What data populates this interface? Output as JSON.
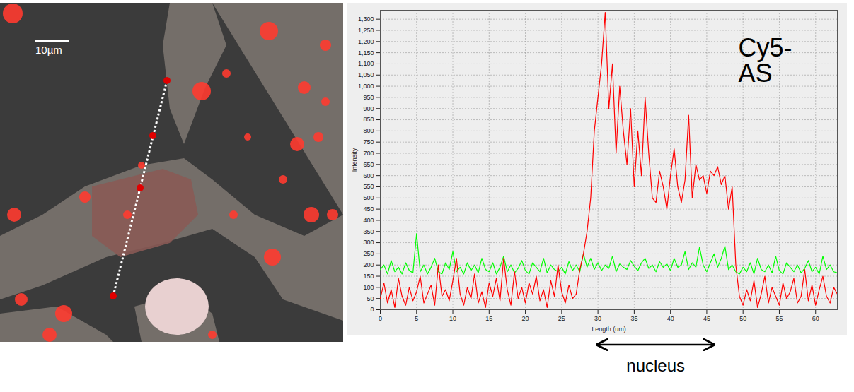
{
  "image": {
    "scale_bar": "10µm"
  },
  "chart_data": {
    "type": "line",
    "x_label": "Length (um)",
    "y_label": "Intensity",
    "xlim": [
      0,
      63
    ],
    "xticks": [
      0,
      5,
      10,
      15,
      20,
      25,
      30,
      35,
      40,
      45,
      50,
      55,
      60
    ],
    "ylim": [
      0,
      1340
    ],
    "yticks": [
      0,
      50,
      100,
      150,
      200,
      250,
      300,
      350,
      400,
      450,
      500,
      550,
      600,
      650,
      700,
      750,
      800,
      850,
      900,
      950,
      {
        "value": 1000,
        "label": "1,000"
      },
      {
        "value": 1050,
        "label": "1,050"
      },
      {
        "value": 1100,
        "label": "1,100"
      },
      {
        "value": 1150,
        "label": "1,150"
      },
      {
        "value": 1200,
        "label": "1,200"
      },
      {
        "value": 1250,
        "label": "1,250"
      },
      {
        "value": 1300,
        "label": "1,300"
      }
    ],
    "grid": true,
    "x": [
      0,
      0.5,
      1,
      1.5,
      2,
      2.5,
      3,
      3.5,
      4,
      4.5,
      5,
      5.5,
      6,
      6.5,
      7,
      7.5,
      8,
      8.5,
      9,
      9.5,
      10,
      10.5,
      11,
      11.5,
      12,
      12.5,
      13,
      13.5,
      14,
      14.5,
      15,
      15.5,
      16,
      16.5,
      17,
      17.5,
      18,
      18.5,
      19,
      19.5,
      20,
      20.5,
      21,
      21.5,
      22,
      22.5,
      23,
      23.5,
      24,
      24.5,
      25,
      25.5,
      26,
      26.5,
      27,
      27.5,
      28,
      28.5,
      29,
      29.5,
      30,
      30.5,
      31,
      31.5,
      32,
      32.5,
      33,
      33.5,
      34,
      34.5,
      35,
      35.5,
      36,
      36.5,
      37,
      37.5,
      38,
      38.5,
      39,
      39.5,
      40,
      40.5,
      41,
      41.5,
      42,
      42.5,
      43,
      43.5,
      44,
      44.5,
      45,
      45.5,
      46,
      46.5,
      47,
      47.5,
      48,
      48.5,
      49,
      49.5,
      50,
      50.5,
      51,
      51.5,
      52,
      52.5,
      53,
      53.5,
      54,
      54.5,
      55,
      55.5,
      56,
      56.5,
      57,
      57.5,
      58,
      58.5,
      59,
      59.5,
      60,
      60.5,
      61,
      61.5,
      62,
      62.5,
      63
    ],
    "series": [
      {
        "color": "#ff0000",
        "values": [
          50,
          120,
          30,
          90,
          10,
          140,
          60,
          20,
          100,
          40,
          80,
          150,
          30,
          70,
          110,
          20,
          200,
          60,
          90,
          40,
          130,
          230,
          70,
          20,
          100,
          50,
          160,
          30,
          80,
          10,
          120,
          60,
          140,
          40,
          230,
          90,
          20,
          170,
          50,
          100,
          30,
          120,
          70,
          150,
          40,
          90,
          10,
          130,
          60,
          200,
          80,
          30,
          110,
          50,
          70,
          180,
          250,
          350,
          500,
          800,
          950,
          1100,
          1330,
          900,
          1100,
          700,
          1000,
          800,
          650,
          900,
          550,
          800,
          600,
          950,
          700,
          500,
          480,
          620,
          550,
          450,
          600,
          720,
          550,
          480,
          580,
          870,
          500,
          650,
          580,
          600,
          520,
          620,
          600,
          640,
          560,
          600,
          450,
          550,
          200,
          60,
          20,
          90,
          40,
          130,
          10,
          70,
          150,
          30,
          100,
          60,
          20,
          120,
          50,
          80,
          140,
          30,
          60,
          180,
          40,
          110,
          20,
          90,
          150,
          60,
          30,
          100,
          70
        ]
      },
      {
        "color": "#00ff00",
        "values": [
          180,
          200,
          160,
          220,
          170,
          190,
          160,
          210,
          175,
          165,
          340,
          170,
          200,
          160,
          190,
          230,
          170,
          160,
          210,
          180,
          260,
          170,
          190,
          160,
          210,
          175,
          200,
          165,
          230,
          180,
          170,
          210,
          160,
          190,
          240,
          170,
          200,
          165,
          185,
          220,
          175,
          160,
          210,
          190,
          170,
          230,
          165,
          200,
          180,
          170,
          190,
          160,
          215,
          175,
          200,
          170,
          250,
          190,
          230,
          180,
          210,
          175,
          200,
          185,
          240,
          170,
          205,
          190,
          180,
          220,
          195,
          175,
          210,
          230,
          185,
          200,
          170,
          215,
          190,
          205,
          175,
          230,
          190,
          200,
          260,
          180,
          210,
          190,
          280,
          200,
          170,
          210,
          250,
          190,
          230,
          285,
          180,
          200,
          170,
          160,
          190,
          170,
          210,
          160,
          230,
          180,
          170,
          200,
          165,
          240,
          175,
          160,
          210,
          190,
          170,
          200,
          165,
          185,
          220,
          170,
          190,
          160,
          240,
          180,
          200,
          170,
          165
        ]
      }
    ],
    "annotations": [
      {
        "text": "Cy5-AS"
      },
      {
        "text": "nucleus",
        "x": [
          30,
          46
        ]
      }
    ]
  }
}
